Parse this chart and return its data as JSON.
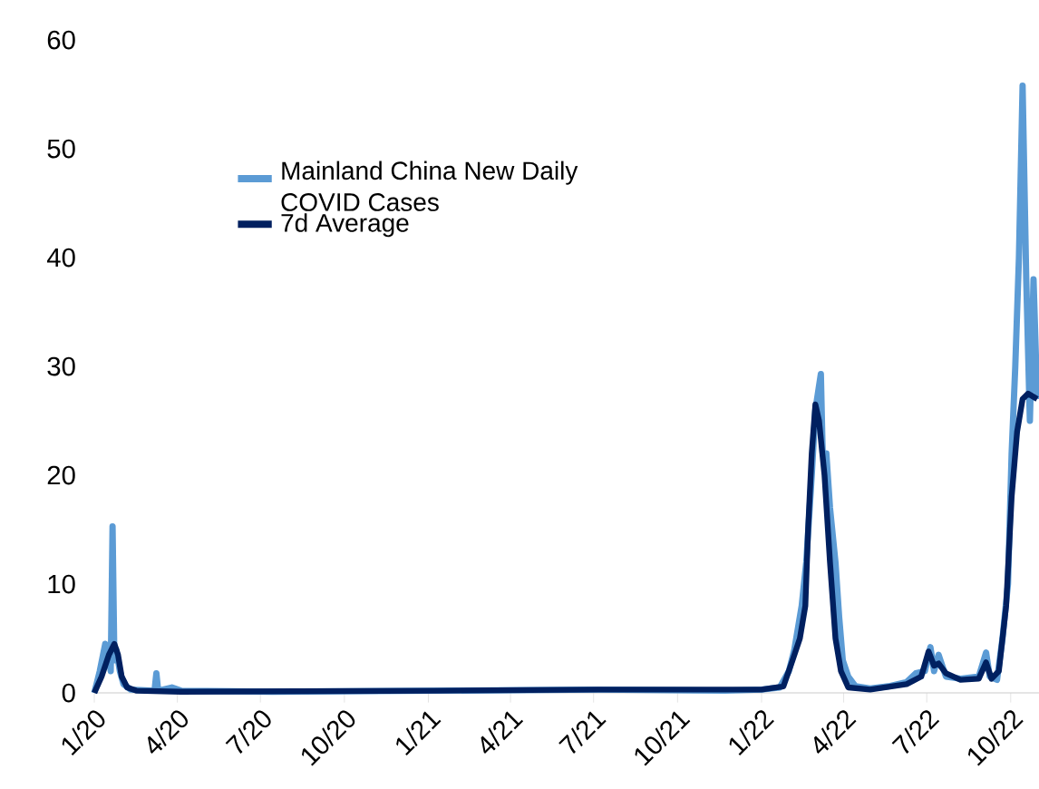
{
  "chart_data": {
    "type": "line",
    "xlim": [
      "2020-01-01",
      "2022-11-01"
    ],
    "ylim": [
      0,
      60
    ],
    "yticks": [
      0,
      10,
      20,
      30,
      40,
      50,
      60
    ],
    "xticks": [
      {
        "value": "2020-01-01",
        "label": "1/20"
      },
      {
        "value": "2020-04-01",
        "label": "4/20"
      },
      {
        "value": "2020-07-01",
        "label": "7/20"
      },
      {
        "value": "2020-10-01",
        "label": "10/20"
      },
      {
        "value": "2021-01-01",
        "label": "1/21"
      },
      {
        "value": "2021-04-01",
        "label": "4/21"
      },
      {
        "value": "2021-07-01",
        "label": "7/21"
      },
      {
        "value": "2021-10-01",
        "label": "10/21"
      },
      {
        "value": "2022-01-01",
        "label": "1/22"
      },
      {
        "value": "2022-04-01",
        "label": "4/22"
      },
      {
        "value": "2022-07-01",
        "label": "7/22"
      },
      {
        "value": "2022-10-01",
        "label": "10/22"
      }
    ],
    "legend": "top",
    "grid": false,
    "marker": "none",
    "series": [
      {
        "name": "Mainland China New Daily COVID Cases",
        "color": "#5b9bd5",
        "x": [
          "2020-01-01",
          "2020-01-07",
          "2020-01-13",
          "2020-01-17",
          "2020-01-19",
          "2020-01-21",
          "2020-01-23",
          "2020-01-25",
          "2020-01-29",
          "2020-02-02",
          "2020-02-10",
          "2020-03-07",
          "2020-03-09",
          "2020-03-11",
          "2020-03-26",
          "2020-04-05",
          "2020-07-14",
          "2021-01-08",
          "2021-07-06",
          "2021-11-22",
          "2022-01-01",
          "2022-01-21",
          "2022-01-31",
          "2022-02-06",
          "2022-02-10",
          "2022-02-14",
          "2022-02-19",
          "2022-02-25",
          "2022-03-01",
          "2022-03-07",
          "2022-03-09",
          "2022-03-13",
          "2022-03-17",
          "2022-03-23",
          "2022-03-27",
          "2022-03-31",
          "2022-04-06",
          "2022-04-14",
          "2022-04-30",
          "2022-05-20",
          "2022-06-09",
          "2022-06-19",
          "2022-06-29",
          "2022-07-05",
          "2022-07-09",
          "2022-07-14",
          "2022-07-22",
          "2022-08-07",
          "2022-08-27",
          "2022-09-04",
          "2022-09-08",
          "2022-09-16",
          "2022-09-22",
          "2022-09-28",
          "2022-10-02",
          "2022-10-06",
          "2022-10-10",
          "2022-10-14",
          "2022-10-18",
          "2022-10-22",
          "2022-10-26",
          "2022-10-30"
        ],
        "values": [
          0,
          2,
          4.5,
          3,
          2,
          15.3,
          3,
          4,
          2,
          0.8,
          0.3,
          0.2,
          1.8,
          0.2,
          0.5,
          0.2,
          0.1,
          0.2,
          0.3,
          0.2,
          0.3,
          0.5,
          2,
          4,
          6,
          8,
          12,
          20,
          26,
          29.3,
          22,
          22,
          17,
          12,
          7,
          3,
          1.5,
          0.6,
          0.4,
          0.6,
          1,
          1.8,
          2,
          4.2,
          2,
          3.5,
          1.5,
          1.3,
          1.5,
          3.7,
          1.5,
          1.2,
          5,
          10,
          22,
          30,
          40,
          55.8,
          38,
          25,
          38,
          27
        ]
      },
      {
        "name": "7d Average",
        "color": "#002060",
        "x": [
          "2020-01-01",
          "2020-01-09",
          "2020-01-17",
          "2020-01-23",
          "2020-01-27",
          "2020-01-31",
          "2020-02-06",
          "2020-02-16",
          "2020-04-05",
          "2021-01-08",
          "2021-07-06",
          "2022-01-01",
          "2022-01-25",
          "2022-02-04",
          "2022-02-12",
          "2022-02-18",
          "2022-02-21",
          "2022-02-25",
          "2022-03-01",
          "2022-03-05",
          "2022-03-11",
          "2022-03-17",
          "2022-03-23",
          "2022-03-29",
          "2022-04-06",
          "2022-04-30",
          "2022-06-09",
          "2022-06-25",
          "2022-07-03",
          "2022-07-09",
          "2022-07-14",
          "2022-07-22",
          "2022-08-07",
          "2022-08-27",
          "2022-09-04",
          "2022-09-10",
          "2022-09-18",
          "2022-09-26",
          "2022-10-02",
          "2022-10-08",
          "2022-10-14",
          "2022-10-20",
          "2022-10-30"
        ],
        "values": [
          0,
          1.5,
          3.5,
          4.5,
          3.5,
          1.5,
          0.5,
          0.2,
          0.1,
          0.2,
          0.3,
          0.3,
          0.6,
          3,
          5,
          8,
          15,
          22,
          26.5,
          25,
          20,
          12,
          5,
          2,
          0.5,
          0.3,
          0.8,
          1.5,
          3.8,
          2.5,
          2.7,
          1.8,
          1.2,
          1.3,
          2.8,
          1.3,
          2,
          8,
          18,
          24,
          27,
          27.5,
          27
        ]
      }
    ]
  }
}
